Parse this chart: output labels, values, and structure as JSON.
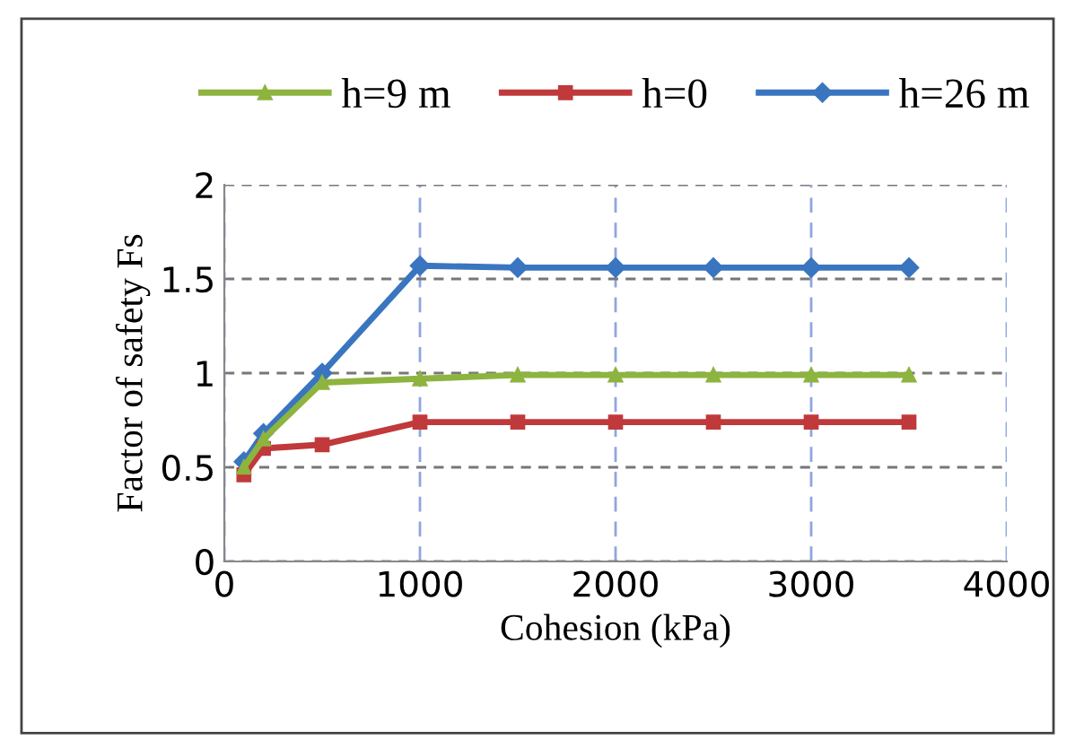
{
  "chart_data": {
    "type": "line",
    "xlabel": "Cohesion (kPa)",
    "ylabel": "Factor of safety Fs",
    "xlim": [
      0,
      4000
    ],
    "xticks": [
      0,
      1000,
      2000,
      3000,
      4000
    ],
    "ylim": [
      0,
      2
    ],
    "yticks": [
      0,
      0.5,
      1,
      1.5,
      2
    ],
    "grid": true,
    "legend": "top",
    "line_style": "solid",
    "series": [
      {
        "name": "h=9 m",
        "color": "#8db43f",
        "marker": "triangle",
        "x": [
          100,
          200,
          500,
          1000,
          1500,
          2000,
          2500,
          3000,
          3500
        ],
        "values": [
          0.5,
          0.65,
          0.95,
          0.97,
          0.99,
          0.99,
          0.99,
          0.99,
          0.99
        ]
      },
      {
        "name": "h=0",
        "color": "#c0393b",
        "marker": "square",
        "x": [
          100,
          200,
          500,
          1000,
          1500,
          2000,
          2500,
          3000,
          3500
        ],
        "values": [
          0.46,
          0.6,
          0.62,
          0.74,
          0.74,
          0.74,
          0.74,
          0.74,
          0.74
        ]
      },
      {
        "name": "h=26 m",
        "color": "#3a75c0",
        "marker": "diamond",
        "x": [
          100,
          200,
          500,
          1000,
          1500,
          2000,
          2500,
          3000,
          3500
        ],
        "values": [
          0.53,
          0.68,
          1.0,
          1.57,
          1.56,
          1.56,
          1.56,
          1.56,
          1.56
        ]
      }
    ]
  }
}
